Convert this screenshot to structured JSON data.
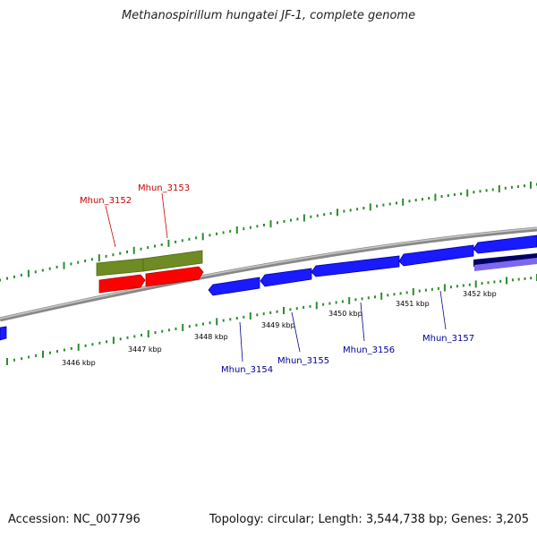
{
  "title": "Methanospirillum hungatei JF-1, complete genome",
  "footer": {
    "accession": "Accession: NC_007796",
    "summary": "Topology: circular; Length: 3,544,738 bp; Genes: 3,205"
  },
  "colors": {
    "forward_gene_red": "#ff0000",
    "forward_block_green": "#6e8c23",
    "reverse_gene_blue": "#1a1aff",
    "label_red": "#cc0000",
    "label_blue": "#000099",
    "ruler_green": "#2e8b2e",
    "backbone_gray": "#8c8c8c",
    "navy_track": "#000066",
    "violet_track": "#7b68ee"
  },
  "scale_labels": [
    "3446 kbp",
    "3447 kbp",
    "3448 kbp",
    "3449 kbp",
    "3450 kbp",
    "3451 kbp",
    "3452 kbp"
  ],
  "genes_forward": [
    "Mhun_3152",
    "Mhun_3153"
  ],
  "genes_reverse": [
    "Mhun_3154",
    "Mhun_3155",
    "Mhun_3156",
    "Mhun_3157"
  ]
}
